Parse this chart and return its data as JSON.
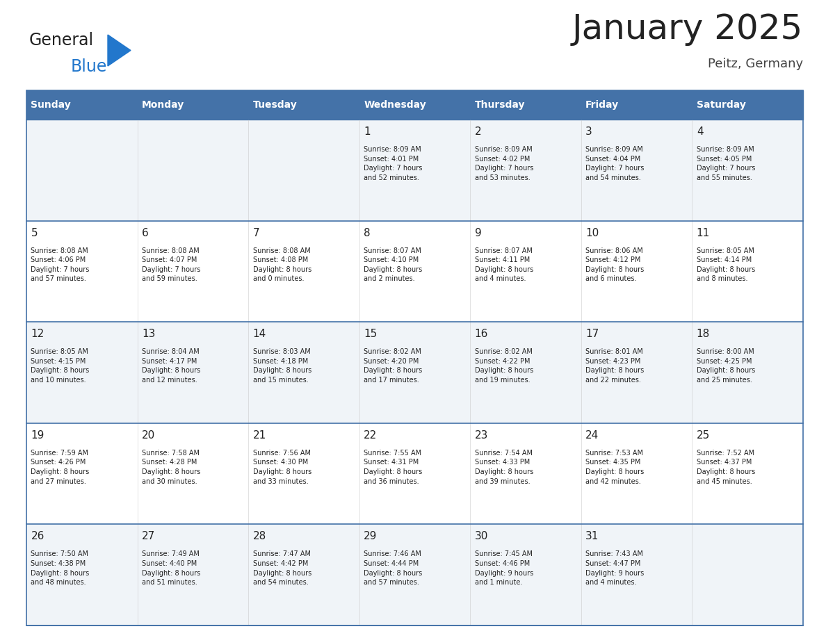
{
  "title": "January 2025",
  "subtitle": "Peitz, Germany",
  "header_color": "#4472a8",
  "header_text_color": "#ffffff",
  "day_names": [
    "Sunday",
    "Monday",
    "Tuesday",
    "Wednesday",
    "Thursday",
    "Friday",
    "Saturday"
  ],
  "weeks": [
    [
      {
        "day": "",
        "info": ""
      },
      {
        "day": "",
        "info": ""
      },
      {
        "day": "",
        "info": ""
      },
      {
        "day": "1",
        "info": "Sunrise: 8:09 AM\nSunset: 4:01 PM\nDaylight: 7 hours\nand 52 minutes."
      },
      {
        "day": "2",
        "info": "Sunrise: 8:09 AM\nSunset: 4:02 PM\nDaylight: 7 hours\nand 53 minutes."
      },
      {
        "day": "3",
        "info": "Sunrise: 8:09 AM\nSunset: 4:04 PM\nDaylight: 7 hours\nand 54 minutes."
      },
      {
        "day": "4",
        "info": "Sunrise: 8:09 AM\nSunset: 4:05 PM\nDaylight: 7 hours\nand 55 minutes."
      }
    ],
    [
      {
        "day": "5",
        "info": "Sunrise: 8:08 AM\nSunset: 4:06 PM\nDaylight: 7 hours\nand 57 minutes."
      },
      {
        "day": "6",
        "info": "Sunrise: 8:08 AM\nSunset: 4:07 PM\nDaylight: 7 hours\nand 59 minutes."
      },
      {
        "day": "7",
        "info": "Sunrise: 8:08 AM\nSunset: 4:08 PM\nDaylight: 8 hours\nand 0 minutes."
      },
      {
        "day": "8",
        "info": "Sunrise: 8:07 AM\nSunset: 4:10 PM\nDaylight: 8 hours\nand 2 minutes."
      },
      {
        "day": "9",
        "info": "Sunrise: 8:07 AM\nSunset: 4:11 PM\nDaylight: 8 hours\nand 4 minutes."
      },
      {
        "day": "10",
        "info": "Sunrise: 8:06 AM\nSunset: 4:12 PM\nDaylight: 8 hours\nand 6 minutes."
      },
      {
        "day": "11",
        "info": "Sunrise: 8:05 AM\nSunset: 4:14 PM\nDaylight: 8 hours\nand 8 minutes."
      }
    ],
    [
      {
        "day": "12",
        "info": "Sunrise: 8:05 AM\nSunset: 4:15 PM\nDaylight: 8 hours\nand 10 minutes."
      },
      {
        "day": "13",
        "info": "Sunrise: 8:04 AM\nSunset: 4:17 PM\nDaylight: 8 hours\nand 12 minutes."
      },
      {
        "day": "14",
        "info": "Sunrise: 8:03 AM\nSunset: 4:18 PM\nDaylight: 8 hours\nand 15 minutes."
      },
      {
        "day": "15",
        "info": "Sunrise: 8:02 AM\nSunset: 4:20 PM\nDaylight: 8 hours\nand 17 minutes."
      },
      {
        "day": "16",
        "info": "Sunrise: 8:02 AM\nSunset: 4:22 PM\nDaylight: 8 hours\nand 19 minutes."
      },
      {
        "day": "17",
        "info": "Sunrise: 8:01 AM\nSunset: 4:23 PM\nDaylight: 8 hours\nand 22 minutes."
      },
      {
        "day": "18",
        "info": "Sunrise: 8:00 AM\nSunset: 4:25 PM\nDaylight: 8 hours\nand 25 minutes."
      }
    ],
    [
      {
        "day": "19",
        "info": "Sunrise: 7:59 AM\nSunset: 4:26 PM\nDaylight: 8 hours\nand 27 minutes."
      },
      {
        "day": "20",
        "info": "Sunrise: 7:58 AM\nSunset: 4:28 PM\nDaylight: 8 hours\nand 30 minutes."
      },
      {
        "day": "21",
        "info": "Sunrise: 7:56 AM\nSunset: 4:30 PM\nDaylight: 8 hours\nand 33 minutes."
      },
      {
        "day": "22",
        "info": "Sunrise: 7:55 AM\nSunset: 4:31 PM\nDaylight: 8 hours\nand 36 minutes."
      },
      {
        "day": "23",
        "info": "Sunrise: 7:54 AM\nSunset: 4:33 PM\nDaylight: 8 hours\nand 39 minutes."
      },
      {
        "day": "24",
        "info": "Sunrise: 7:53 AM\nSunset: 4:35 PM\nDaylight: 8 hours\nand 42 minutes."
      },
      {
        "day": "25",
        "info": "Sunrise: 7:52 AM\nSunset: 4:37 PM\nDaylight: 8 hours\nand 45 minutes."
      }
    ],
    [
      {
        "day": "26",
        "info": "Sunrise: 7:50 AM\nSunset: 4:38 PM\nDaylight: 8 hours\nand 48 minutes."
      },
      {
        "day": "27",
        "info": "Sunrise: 7:49 AM\nSunset: 4:40 PM\nDaylight: 8 hours\nand 51 minutes."
      },
      {
        "day": "28",
        "info": "Sunrise: 7:47 AM\nSunset: 4:42 PM\nDaylight: 8 hours\nand 54 minutes."
      },
      {
        "day": "29",
        "info": "Sunrise: 7:46 AM\nSunset: 4:44 PM\nDaylight: 8 hours\nand 57 minutes."
      },
      {
        "day": "30",
        "info": "Sunrise: 7:45 AM\nSunset: 4:46 PM\nDaylight: 9 hours\nand 1 minute."
      },
      {
        "day": "31",
        "info": "Sunrise: 7:43 AM\nSunset: 4:47 PM\nDaylight: 9 hours\nand 4 minutes."
      },
      {
        "day": "",
        "info": ""
      }
    ]
  ],
  "bg_color": "#ffffff",
  "cell_bg_odd": "#f0f4f8",
  "cell_bg_even": "#ffffff",
  "cell_border_color": "#4472a8",
  "day_num_color": "#222222",
  "info_text_color": "#222222",
  "title_color": "#222222",
  "subtitle_color": "#444444",
  "logo_general_color": "#222222",
  "logo_blue_color": "#2277cc",
  "logo_triangle_color": "#2277cc"
}
